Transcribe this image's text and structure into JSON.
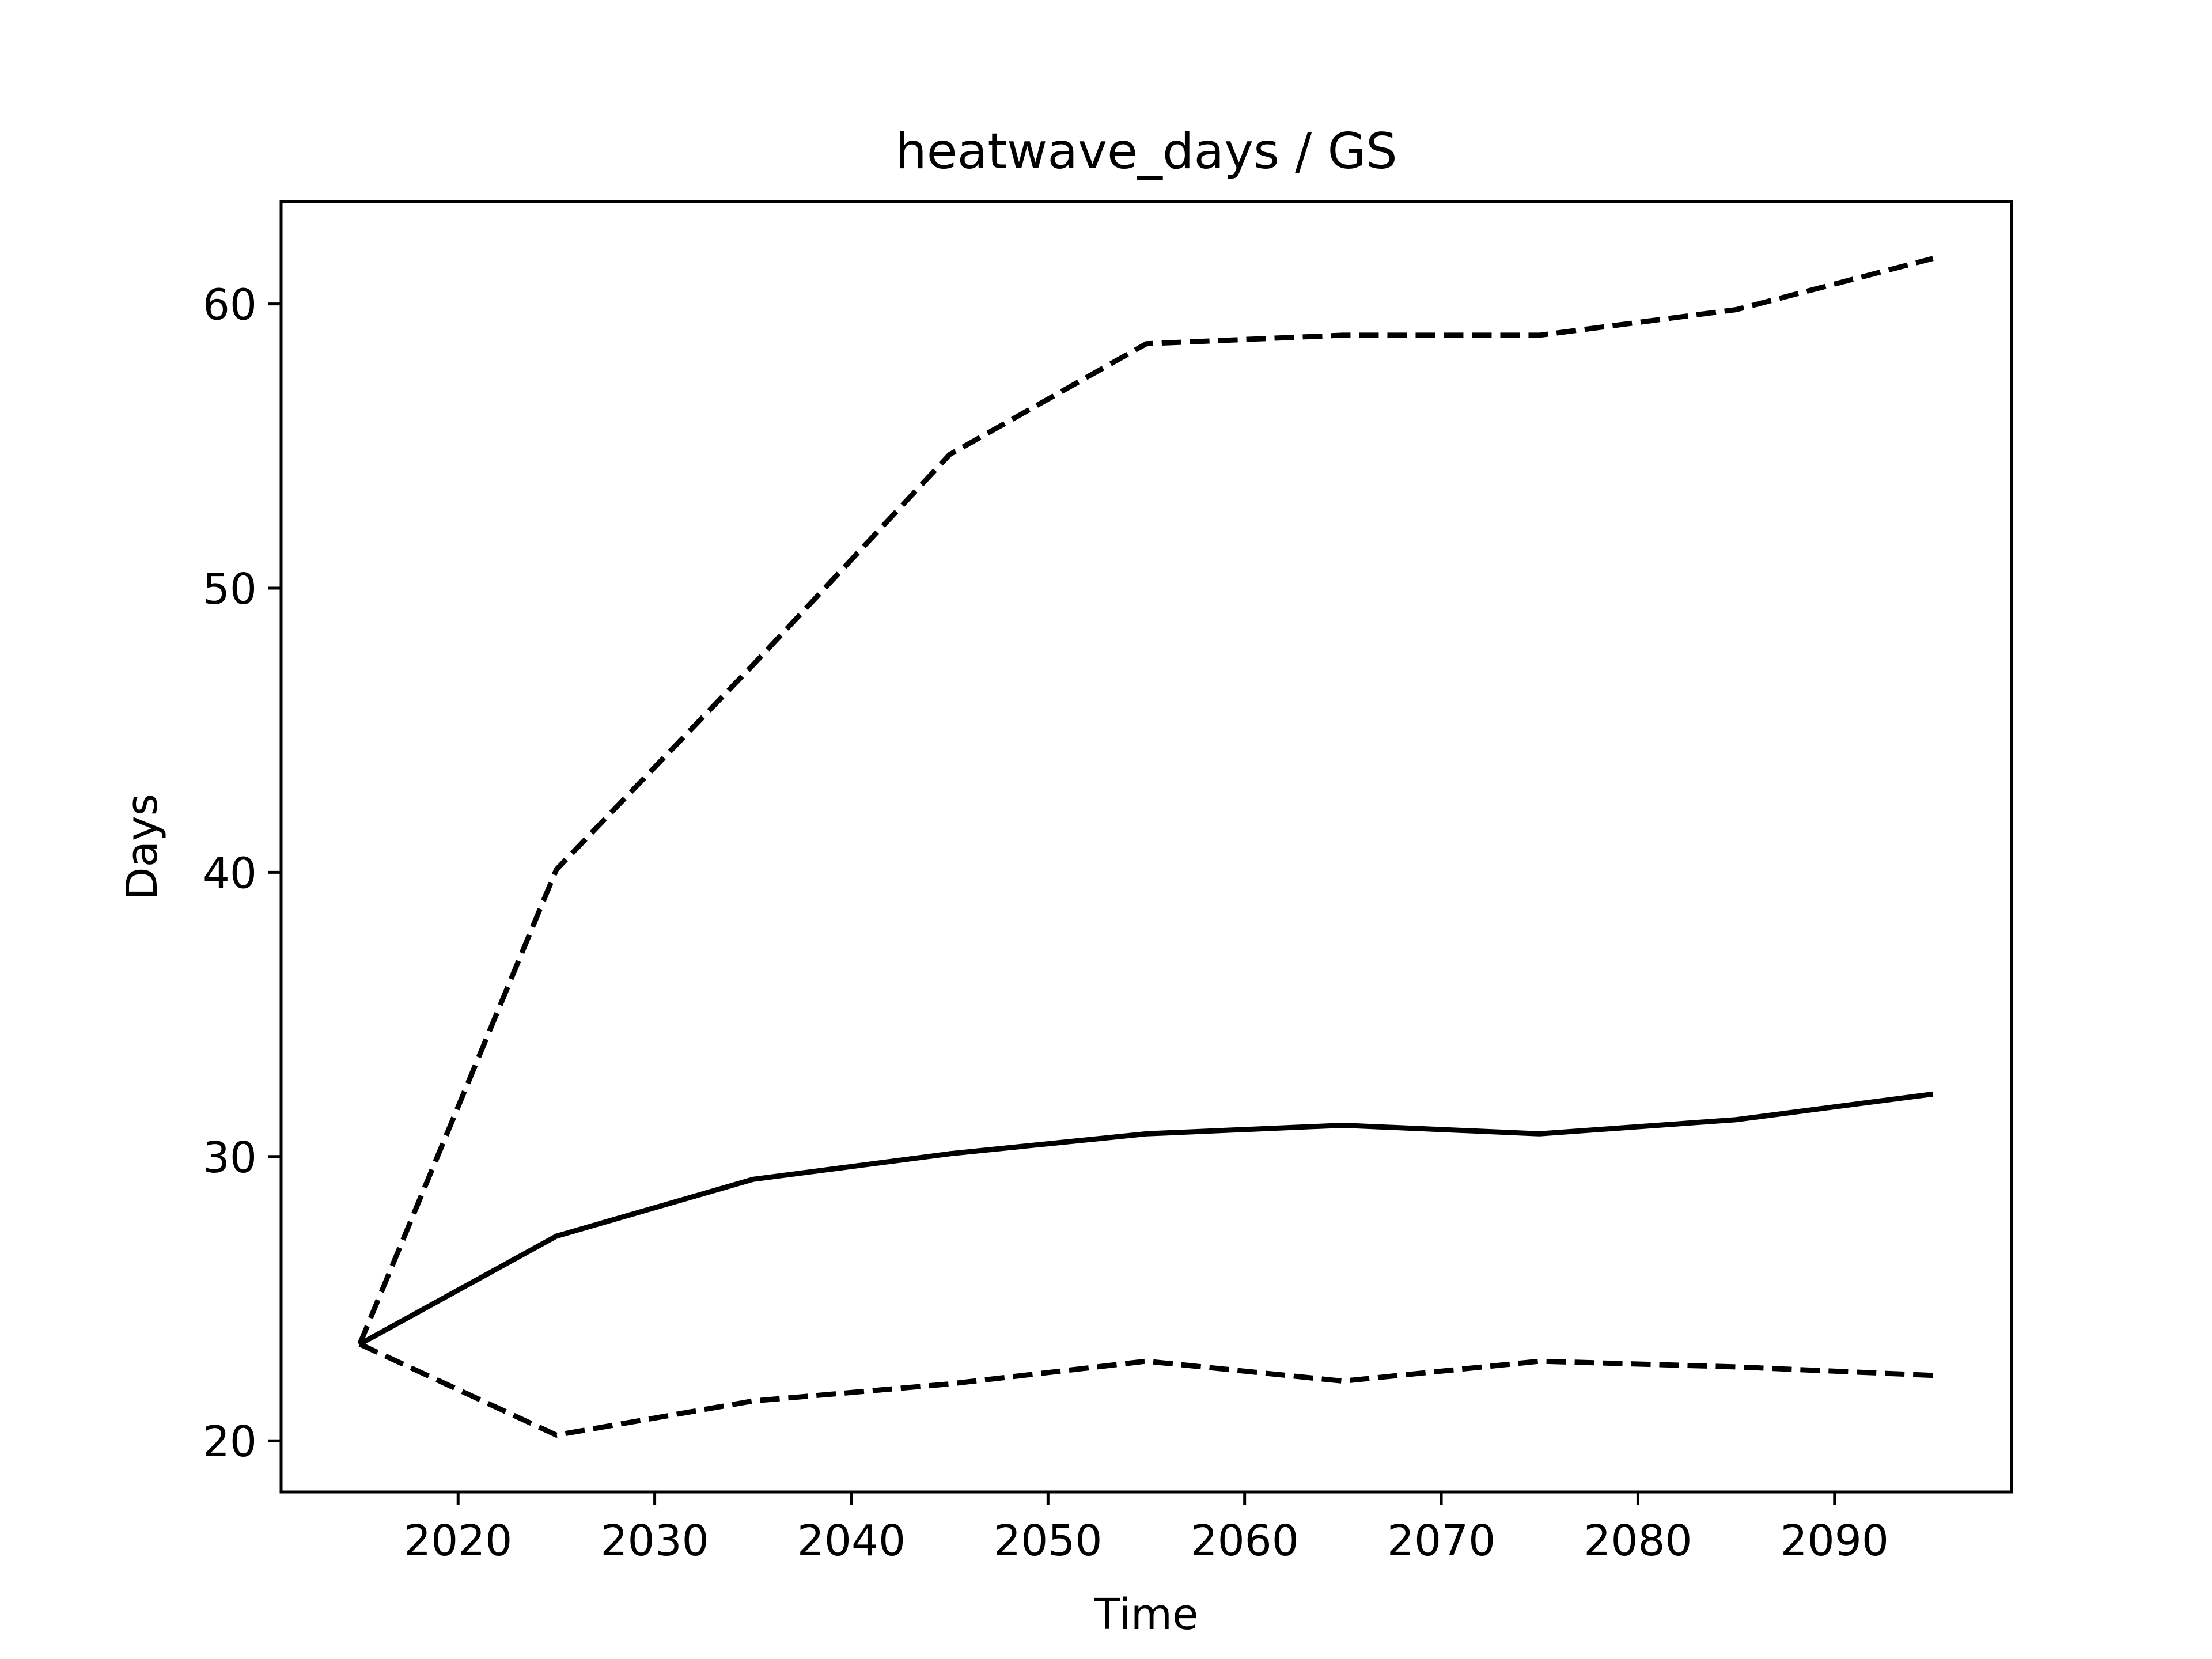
{
  "chart_data": {
    "type": "line",
    "title": "heatwave_days / GS",
    "xlabel": "Time",
    "ylabel": "Days",
    "xlim": [
      2011,
      2099
    ],
    "ylim": [
      18.2,
      63.6
    ],
    "xticks": [
      2020,
      2030,
      2040,
      2050,
      2060,
      2070,
      2080,
      2090
    ],
    "yticks": [
      20,
      30,
      40,
      50,
      60
    ],
    "grid": false,
    "legend": "none",
    "x": [
      2015,
      2025,
      2035,
      2045,
      2055,
      2065,
      2075,
      2085,
      2095
    ],
    "series": [
      {
        "style": "solid",
        "color": "#000000",
        "values": [
          23.4,
          27.2,
          29.2,
          30.1,
          30.8,
          31.1,
          30.8,
          31.3,
          32.2
        ]
      },
      {
        "style": "dashed",
        "color": "#000000",
        "values": [
          23.4,
          40.1,
          47.3,
          54.7,
          58.6,
          58.9,
          58.9,
          59.8,
          61.6
        ]
      },
      {
        "style": "dashed",
        "color": "#000000",
        "values": [
          23.4,
          20.2,
          21.4,
          22.0,
          22.8,
          22.1,
          22.8,
          22.6,
          22.3
        ]
      }
    ]
  }
}
